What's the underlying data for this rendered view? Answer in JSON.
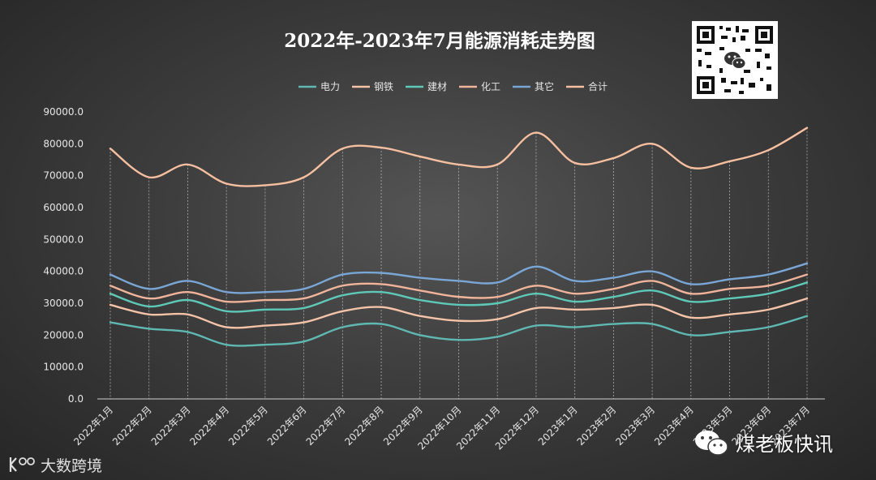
{
  "chart_data": {
    "type": "line",
    "title": "2022年-2023年7月能源消耗走势图",
    "categories": [
      "2022年1月",
      "2022年2月",
      "2022年3月",
      "2022年4月",
      "2022年5月",
      "2022年6月",
      "2022年7月",
      "2022年8月",
      "2022年9月",
      "2022年10月",
      "2022年11月",
      "2022年12月",
      "2023年1月",
      "2023年2月",
      "2023年3月",
      "2023年4月",
      "2023年5月",
      "2023年6月",
      "2023年7月"
    ],
    "yticks": [
      "0.0",
      "10000.0",
      "20000.0",
      "30000.0",
      "40000.0",
      "50000.0",
      "60000.0",
      "70000.0",
      "80000.0",
      "90000.0"
    ],
    "ylim": [
      0,
      90000
    ],
    "grid": "vertical dotted lines at data points",
    "legend_position": "top",
    "series": [
      {
        "name": "电力",
        "color": "#5fb8b2",
        "values": [
          24000,
          22000,
          21000,
          17000,
          17000,
          18000,
          22500,
          23500,
          20000,
          18500,
          19500,
          23000,
          22500,
          23500,
          23500,
          20000,
          21000,
          22500,
          26000
        ]
      },
      {
        "name": "钢铁",
        "color": "#f4c3a8",
        "values": [
          29500,
          26500,
          26500,
          22500,
          23000,
          24000,
          27500,
          28800,
          26000,
          24500,
          25000,
          28500,
          28000,
          28500,
          29500,
          25500,
          26500,
          28000,
          31500
        ]
      },
      {
        "name": "建材",
        "color": "#5fc9b8",
        "values": [
          33000,
          29000,
          31000,
          27500,
          28000,
          28500,
          32500,
          33500,
          31000,
          29500,
          30000,
          33000,
          30500,
          32000,
          34000,
          30500,
          31500,
          33000,
          36500
        ]
      },
      {
        "name": "化工",
        "color": "#f0b49a",
        "values": [
          35500,
          31500,
          33500,
          30500,
          31000,
          31500,
          35500,
          36000,
          34000,
          32000,
          32000,
          35500,
          33000,
          34500,
          37000,
          33000,
          34500,
          35500,
          39000
        ]
      },
      {
        "name": "其它",
        "color": "#7aa6d6",
        "values": [
          39000,
          34500,
          37000,
          33500,
          33500,
          34500,
          39000,
          39500,
          38000,
          37000,
          36500,
          41500,
          37000,
          38000,
          40000,
          36000,
          37500,
          39000,
          42500
        ]
      },
      {
        "name": "合计",
        "color": "#f6bfa0",
        "values": [
          78500,
          69500,
          73500,
          67500,
          67000,
          69500,
          78500,
          78800,
          76000,
          73500,
          73500,
          83500,
          74000,
          75500,
          80000,
          72500,
          74500,
          78000,
          85000
        ]
      }
    ]
  },
  "watermarks": {
    "right": "煤老板快讯",
    "left": "大数跨境"
  },
  "icons": {
    "qr": "qr-code-icon",
    "wechat": "wechat-icon",
    "brand": "brand-logo-icon"
  }
}
